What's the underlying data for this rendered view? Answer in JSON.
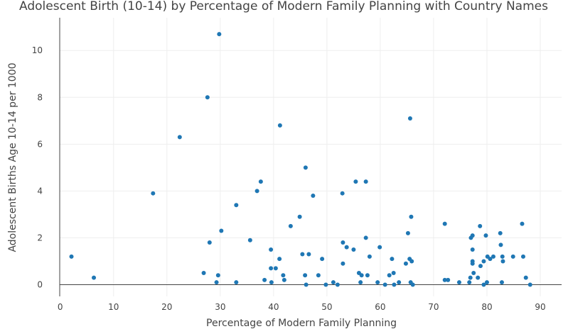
{
  "chart_data": {
    "type": "scatter",
    "title": "Adolescent Birth (10-14) by Percentage of Modern Family Planning with Country Names",
    "xlabel": "Percentage of Modern Family Planning",
    "ylabel": "Adolescent Births Age 10-14 per 1000",
    "xlim": [
      -0.1,
      94
    ],
    "ylim": [
      -0.5,
      11.4
    ],
    "x_ticks": [
      0,
      10,
      20,
      30,
      40,
      50,
      60,
      70,
      80,
      90
    ],
    "y_ticks": [
      0,
      2,
      4,
      6,
      8,
      10
    ],
    "grid": true,
    "marker_color": "#1f77b4",
    "points": [
      {
        "x": 2.1,
        "y": 1.2
      },
      {
        "x": 6.3,
        "y": 0.3
      },
      {
        "x": 17.4,
        "y": 3.9
      },
      {
        "x": 22.4,
        "y": 6.3
      },
      {
        "x": 26.9,
        "y": 0.5
      },
      {
        "x": 27.6,
        "y": 8.0
      },
      {
        "x": 28.0,
        "y": 1.8
      },
      {
        "x": 29.3,
        "y": 0.1
      },
      {
        "x": 29.6,
        "y": 0.4
      },
      {
        "x": 29.8,
        "y": 10.7
      },
      {
        "x": 30.2,
        "y": 2.3
      },
      {
        "x": 33.0,
        "y": 3.4
      },
      {
        "x": 33.0,
        "y": 0.1
      },
      {
        "x": 35.6,
        "y": 1.9
      },
      {
        "x": 36.9,
        "y": 4.0
      },
      {
        "x": 37.6,
        "y": 4.4
      },
      {
        "x": 38.3,
        "y": 0.2
      },
      {
        "x": 39.5,
        "y": 1.5
      },
      {
        "x": 39.5,
        "y": 0.7
      },
      {
        "x": 39.6,
        "y": 0.1
      },
      {
        "x": 40.4,
        "y": 0.7
      },
      {
        "x": 41.1,
        "y": 1.1
      },
      {
        "x": 41.2,
        "y": 6.8
      },
      {
        "x": 41.8,
        "y": 0.4
      },
      {
        "x": 42.0,
        "y": 0.2
      },
      {
        "x": 43.2,
        "y": 2.5
      },
      {
        "x": 44.9,
        "y": 2.9
      },
      {
        "x": 45.4,
        "y": 1.3
      },
      {
        "x": 45.9,
        "y": 0.4
      },
      {
        "x": 46.0,
        "y": 5.0
      },
      {
        "x": 46.1,
        "y": 0.0
      },
      {
        "x": 46.6,
        "y": 1.3
      },
      {
        "x": 47.4,
        "y": 3.8
      },
      {
        "x": 48.4,
        "y": 0.4
      },
      {
        "x": 49.1,
        "y": 1.1
      },
      {
        "x": 49.8,
        "y": 0.0
      },
      {
        "x": 51.2,
        "y": 0.1
      },
      {
        "x": 52.0,
        "y": 0.0
      },
      {
        "x": 52.9,
        "y": 3.9
      },
      {
        "x": 53.0,
        "y": 1.8
      },
      {
        "x": 53.0,
        "y": 0.9
      },
      {
        "x": 53.7,
        "y": 1.6
      },
      {
        "x": 55.0,
        "y": 1.5
      },
      {
        "x": 55.4,
        "y": 4.4
      },
      {
        "x": 56.0,
        "y": 0.5
      },
      {
        "x": 56.3,
        "y": 0.1
      },
      {
        "x": 56.5,
        "y": 0.4
      },
      {
        "x": 57.3,
        "y": 4.4
      },
      {
        "x": 57.3,
        "y": 2.0
      },
      {
        "x": 57.6,
        "y": 0.4
      },
      {
        "x": 58.0,
        "y": 1.2
      },
      {
        "x": 59.5,
        "y": 0.1
      },
      {
        "x": 59.9,
        "y": 1.6
      },
      {
        "x": 60.9,
        "y": 0.0
      },
      {
        "x": 61.7,
        "y": 0.4
      },
      {
        "x": 62.2,
        "y": 1.1
      },
      {
        "x": 62.5,
        "y": 0.5
      },
      {
        "x": 62.6,
        "y": 0.0
      },
      {
        "x": 63.5,
        "y": 0.1
      },
      {
        "x": 64.8,
        "y": 0.9
      },
      {
        "x": 65.2,
        "y": 2.2
      },
      {
        "x": 65.5,
        "y": 1.1
      },
      {
        "x": 65.6,
        "y": 7.1
      },
      {
        "x": 65.7,
        "y": 0.1
      },
      {
        "x": 65.8,
        "y": 2.9
      },
      {
        "x": 65.9,
        "y": 1.0
      },
      {
        "x": 66.1,
        "y": 0.0
      },
      {
        "x": 72.1,
        "y": 2.6
      },
      {
        "x": 72.1,
        "y": 0.2
      },
      {
        "x": 72.7,
        "y": 0.2
      },
      {
        "x": 74.8,
        "y": 0.1
      },
      {
        "x": 76.7,
        "y": 0.1
      },
      {
        "x": 76.9,
        "y": 0.3
      },
      {
        "x": 77.0,
        "y": 2.0
      },
      {
        "x": 77.3,
        "y": 2.1
      },
      {
        "x": 77.3,
        "y": 1.5
      },
      {
        "x": 77.3,
        "y": 1.0
      },
      {
        "x": 77.3,
        "y": 0.9
      },
      {
        "x": 77.5,
        "y": 0.5
      },
      {
        "x": 78.3,
        "y": 0.3
      },
      {
        "x": 78.7,
        "y": 2.5
      },
      {
        "x": 78.8,
        "y": 0.8
      },
      {
        "x": 79.4,
        "y": 1.0
      },
      {
        "x": 79.4,
        "y": 0.0
      },
      {
        "x": 79.8,
        "y": 2.1
      },
      {
        "x": 80.0,
        "y": 0.1
      },
      {
        "x": 80.1,
        "y": 1.2
      },
      {
        "x": 80.6,
        "y": 1.1
      },
      {
        "x": 81.2,
        "y": 1.2
      },
      {
        "x": 82.5,
        "y": 2.2
      },
      {
        "x": 82.6,
        "y": 1.7
      },
      {
        "x": 82.8,
        "y": 0.1
      },
      {
        "x": 82.9,
        "y": 1.2
      },
      {
        "x": 83.0,
        "y": 1.0
      },
      {
        "x": 84.9,
        "y": 1.2
      },
      {
        "x": 86.6,
        "y": 2.6
      },
      {
        "x": 86.8,
        "y": 1.2
      },
      {
        "x": 87.3,
        "y": 0.3
      },
      {
        "x": 88.1,
        "y": 0.0
      }
    ]
  }
}
